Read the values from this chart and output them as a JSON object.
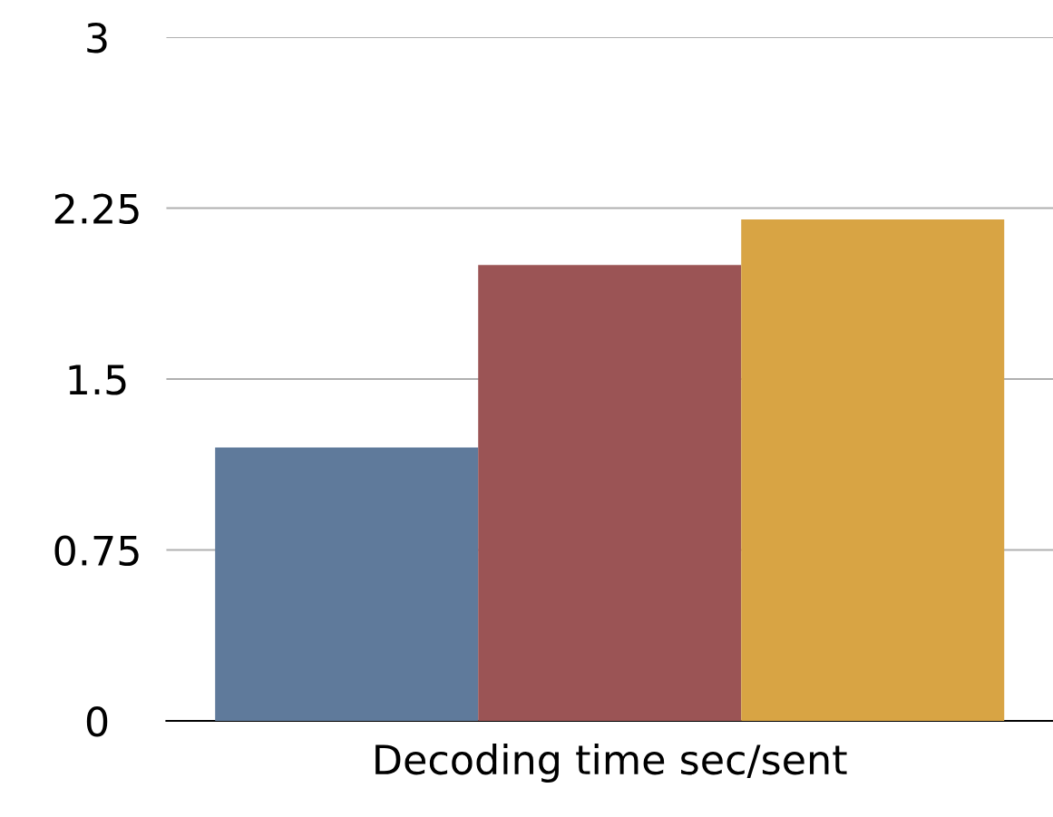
{
  "chart_data": {
    "type": "bar",
    "categories": [
      "Decoding time sec/sent"
    ],
    "series": [
      {
        "color": "#5f7a9b",
        "values": [
          1.2
        ]
      },
      {
        "color": "#9b5455",
        "values": [
          2.0
        ]
      },
      {
        "color": "#d8a444",
        "values": [
          2.2
        ]
      }
    ],
    "ylim": [
      0,
      3
    ],
    "yticks": [
      0,
      0.75,
      1.5,
      2.25,
      3
    ],
    "grid": "y"
  }
}
